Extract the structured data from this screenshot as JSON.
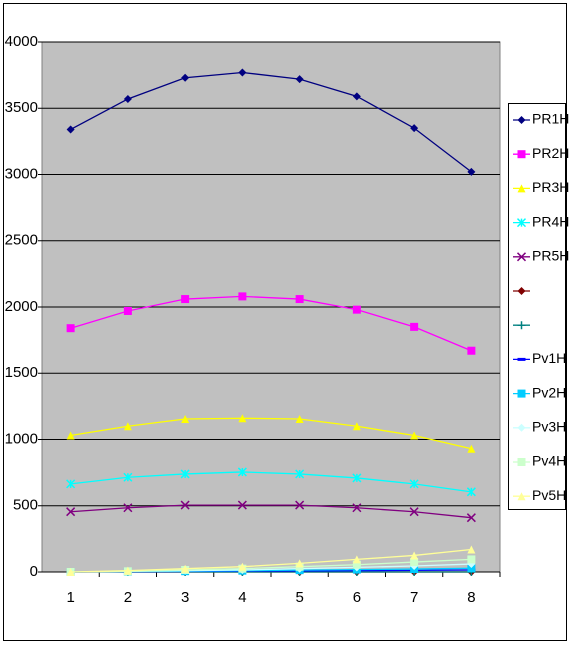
{
  "chart_data": {
    "type": "line",
    "categories": [
      "1",
      "2",
      "3",
      "4",
      "5",
      "6",
      "7",
      "8"
    ],
    "ylim": [
      0,
      4000
    ],
    "yticks": [
      0,
      500,
      1000,
      1500,
      2000,
      2500,
      3000,
      3500,
      4000
    ],
    "grid": true,
    "legend": "right",
    "series": [
      {
        "name": "PR1H",
        "color": "#000080",
        "marker": "diamond",
        "values": [
          3340,
          3570,
          3730,
          3770,
          3720,
          3590,
          3350,
          3020
        ]
      },
      {
        "name": "PR2H",
        "color": "#ff00ff",
        "marker": "square",
        "values": [
          1840,
          1970,
          2060,
          2080,
          2060,
          1980,
          1850,
          1670
        ]
      },
      {
        "name": "PR3H",
        "color": "#ffff00",
        "marker": "triangle",
        "values": [
          1030,
          1100,
          1155,
          1160,
          1155,
          1100,
          1030,
          930
        ]
      },
      {
        "name": "PR4H",
        "color": "#00ffff",
        "marker": "star",
        "values": [
          665,
          715,
          740,
          755,
          740,
          710,
          665,
          605
        ]
      },
      {
        "name": "PR5H",
        "color": "#800080",
        "marker": "x",
        "values": [
          455,
          485,
          505,
          505,
          505,
          485,
          455,
          410
        ]
      },
      {
        "name": null,
        "color": "#800000",
        "marker": "diamond",
        "values": [
          0,
          0,
          0,
          0,
          0,
          0,
          0,
          0
        ]
      },
      {
        "name": null,
        "color": "#008080",
        "marker": "plus",
        "values": [
          0,
          0,
          0,
          0,
          0,
          0,
          0,
          0
        ]
      },
      {
        "name": "Pv1H",
        "color": "#0000ff",
        "marker": "dash",
        "values": [
          0,
          2,
          4,
          6,
          8,
          10,
          12,
          15
        ]
      },
      {
        "name": "Pv2H",
        "color": "#00ccff",
        "marker": "square",
        "values": [
          0,
          3,
          6,
          10,
          14,
          18,
          22,
          28
        ]
      },
      {
        "name": "Pv3H",
        "color": "#ccffff",
        "marker": "diamond",
        "values": [
          0,
          5,
          10,
          15,
          25,
          35,
          45,
          60
        ]
      },
      {
        "name": "Pv4H",
        "color": "#ccffcc",
        "marker": "square",
        "values": [
          0,
          5,
          15,
          25,
          40,
          55,
          75,
          95
        ]
      },
      {
        "name": "Pv5H",
        "color": "#ffff99",
        "marker": "triangle",
        "values": [
          0,
          10,
          25,
          40,
          65,
          95,
          125,
          170
        ]
      }
    ]
  }
}
